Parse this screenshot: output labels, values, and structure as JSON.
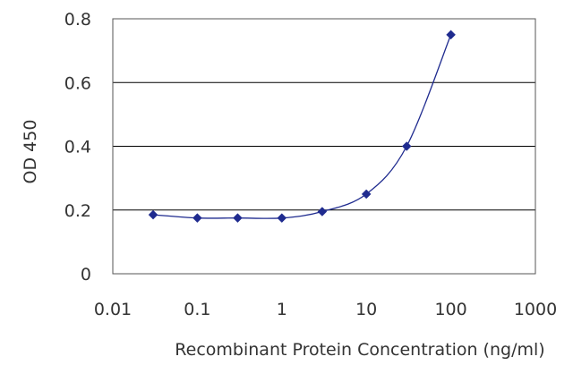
{
  "chart_data": {
    "type": "scatter",
    "title": "",
    "xlabel": "Recombinant Protein Concentration (ng/ml)",
    "ylabel": "OD 450",
    "x_scale": "log",
    "xlim": [
      0.01,
      1000
    ],
    "ylim": [
      0,
      0.8
    ],
    "x_ticks": [
      0.01,
      0.1,
      1,
      10,
      100,
      1000
    ],
    "x_tick_labels": [
      "0.01",
      "0.1",
      "1",
      "10",
      "100",
      "1000"
    ],
    "y_ticks": [
      0,
      0.2,
      0.4,
      0.6,
      0.8
    ],
    "y_tick_labels": [
      "0",
      "0.2",
      "0.4",
      "0.6",
      "0.8"
    ],
    "grid": "horizontal",
    "legend": "none",
    "series": [
      {
        "x": [
          0.03,
          0.1,
          0.3,
          1,
          3,
          10,
          30,
          100
        ],
        "y": [
          0.185,
          0.175,
          0.175,
          0.175,
          0.195,
          0.25,
          0.4,
          0.75
        ]
      }
    ],
    "colors": {
      "series": "#1f2b8f",
      "grid": "#000000",
      "frame": "#555555"
    }
  }
}
